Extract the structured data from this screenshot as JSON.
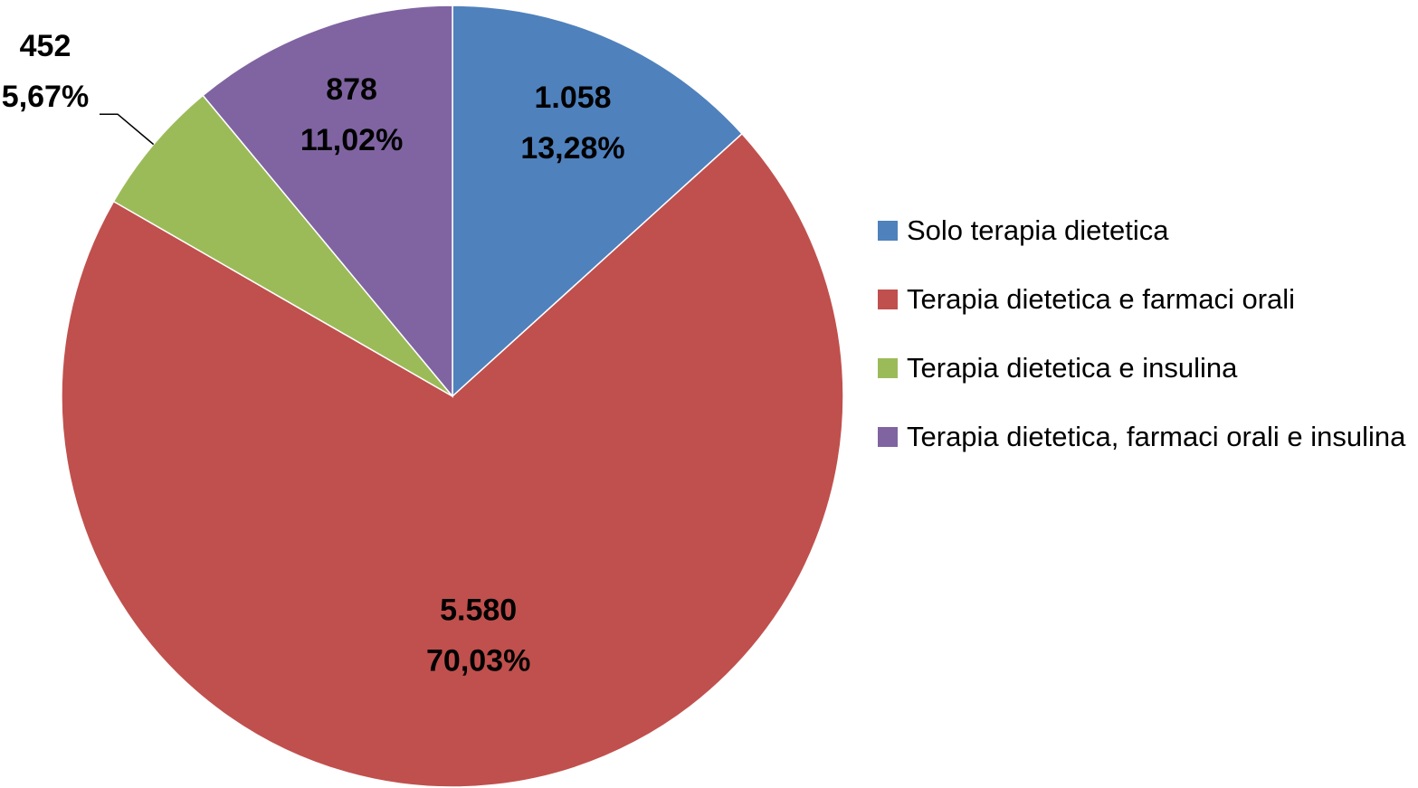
{
  "chart_data": {
    "type": "pie",
    "categories": [
      "Solo terapia dietetica",
      "Terapia dietetica e farmaci orali",
      "Terapia dietetica e insulina",
      "Terapia dietetica, farmaci orali e insulina"
    ],
    "values": [
      1058,
      5580,
      452,
      878
    ],
    "value_labels": [
      "1.058",
      "5.580",
      "452",
      "878"
    ],
    "percentages": [
      13.28,
      70.03,
      5.67,
      11.02
    ],
    "percentage_labels": [
      "13,28%",
      "70,03%",
      "5,67%",
      "11,02%"
    ],
    "colors": [
      "#4f81bd",
      "#c0504d",
      "#9bbb59",
      "#8064a2"
    ],
    "legend": "right"
  }
}
